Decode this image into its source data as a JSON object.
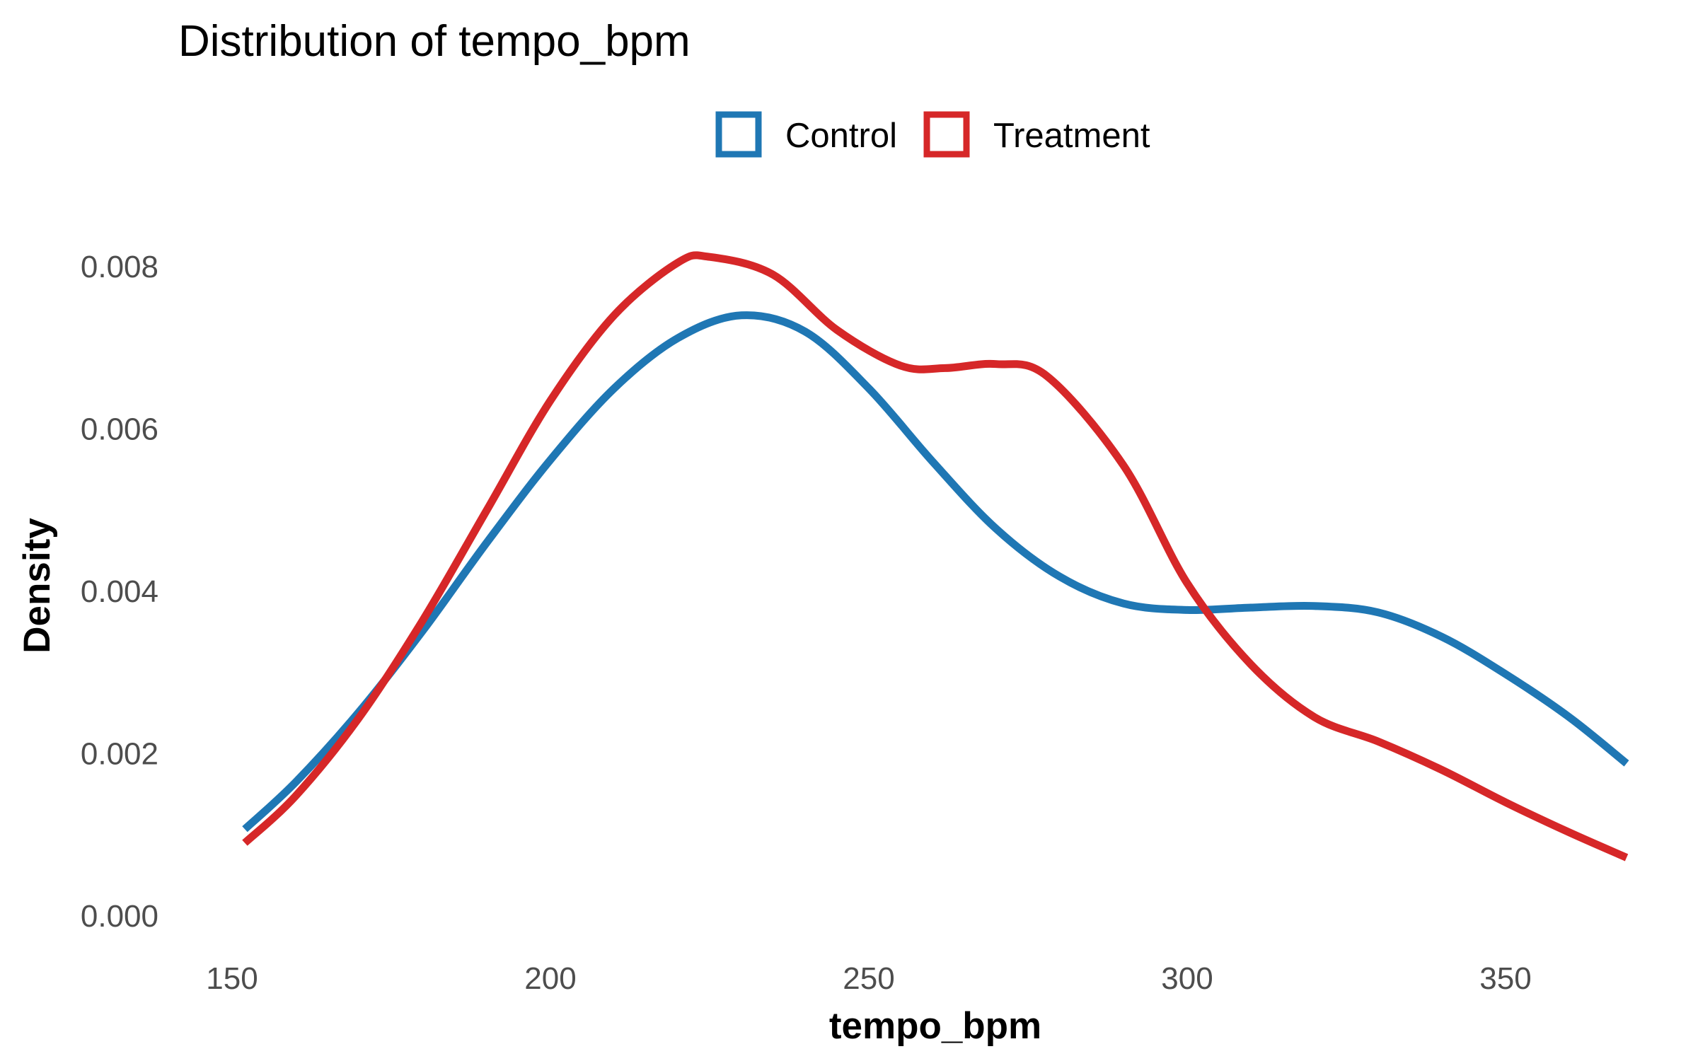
{
  "chart_data": {
    "type": "line",
    "title": "Distribution of tempo_bpm",
    "xlabel": "tempo_bpm",
    "ylabel": "Density",
    "xlim": [
      147,
      372
    ],
    "ylim": [
      0,
      0.0086
    ],
    "x_ticks": [
      150,
      200,
      250,
      300,
      350
    ],
    "x_tick_labels": [
      "150",
      "200",
      "250",
      "300",
      "350"
    ],
    "y_ticks": [
      0,
      0.002,
      0.004,
      0.006,
      0.008
    ],
    "y_tick_labels": [
      "0.000",
      "0.002",
      "0.004",
      "0.006",
      "0.008"
    ],
    "grid": false,
    "legend_position": "top",
    "series": [
      {
        "name": "Control",
        "color": "#1f77b4",
        "points": [
          [
            152,
            0.00107
          ],
          [
            160,
            0.00165
          ],
          [
            170,
            0.00252
          ],
          [
            180,
            0.00352
          ],
          [
            190,
            0.0046
          ],
          [
            200,
            0.00562
          ],
          [
            210,
            0.0065
          ],
          [
            220,
            0.00712
          ],
          [
            230,
            0.0074
          ],
          [
            240,
            0.0072
          ],
          [
            250,
            0.0065
          ],
          [
            260,
            0.0056
          ],
          [
            270,
            0.00477
          ],
          [
            280,
            0.00418
          ],
          [
            290,
            0.00385
          ],
          [
            300,
            0.00377
          ],
          [
            310,
            0.0038
          ],
          [
            320,
            0.00382
          ],
          [
            330,
            0.00374
          ],
          [
            340,
            0.00344
          ],
          [
            350,
            0.00298
          ],
          [
            360,
            0.00245
          ],
          [
            369,
            0.00188
          ]
        ]
      },
      {
        "name": "Treatment",
        "color": "#d62728",
        "points": [
          [
            152,
            0.0009
          ],
          [
            160,
            0.00148
          ],
          [
            170,
            0.00245
          ],
          [
            180,
            0.00365
          ],
          [
            190,
            0.005
          ],
          [
            200,
            0.00635
          ],
          [
            210,
            0.0074
          ],
          [
            220,
            0.00805
          ],
          [
            225,
            0.00812
          ],
          [
            235,
            0.0079
          ],
          [
            245,
            0.00722
          ],
          [
            255,
            0.00678
          ],
          [
            262,
            0.00675
          ],
          [
            270,
            0.0068
          ],
          [
            278,
            0.00665
          ],
          [
            290,
            0.00555
          ],
          [
            300,
            0.0041
          ],
          [
            310,
            0.0031
          ],
          [
            320,
            0.00245
          ],
          [
            330,
            0.00215
          ],
          [
            340,
            0.0018
          ],
          [
            350,
            0.0014
          ],
          [
            360,
            0.00103
          ],
          [
            369,
            0.00072
          ]
        ]
      }
    ]
  }
}
